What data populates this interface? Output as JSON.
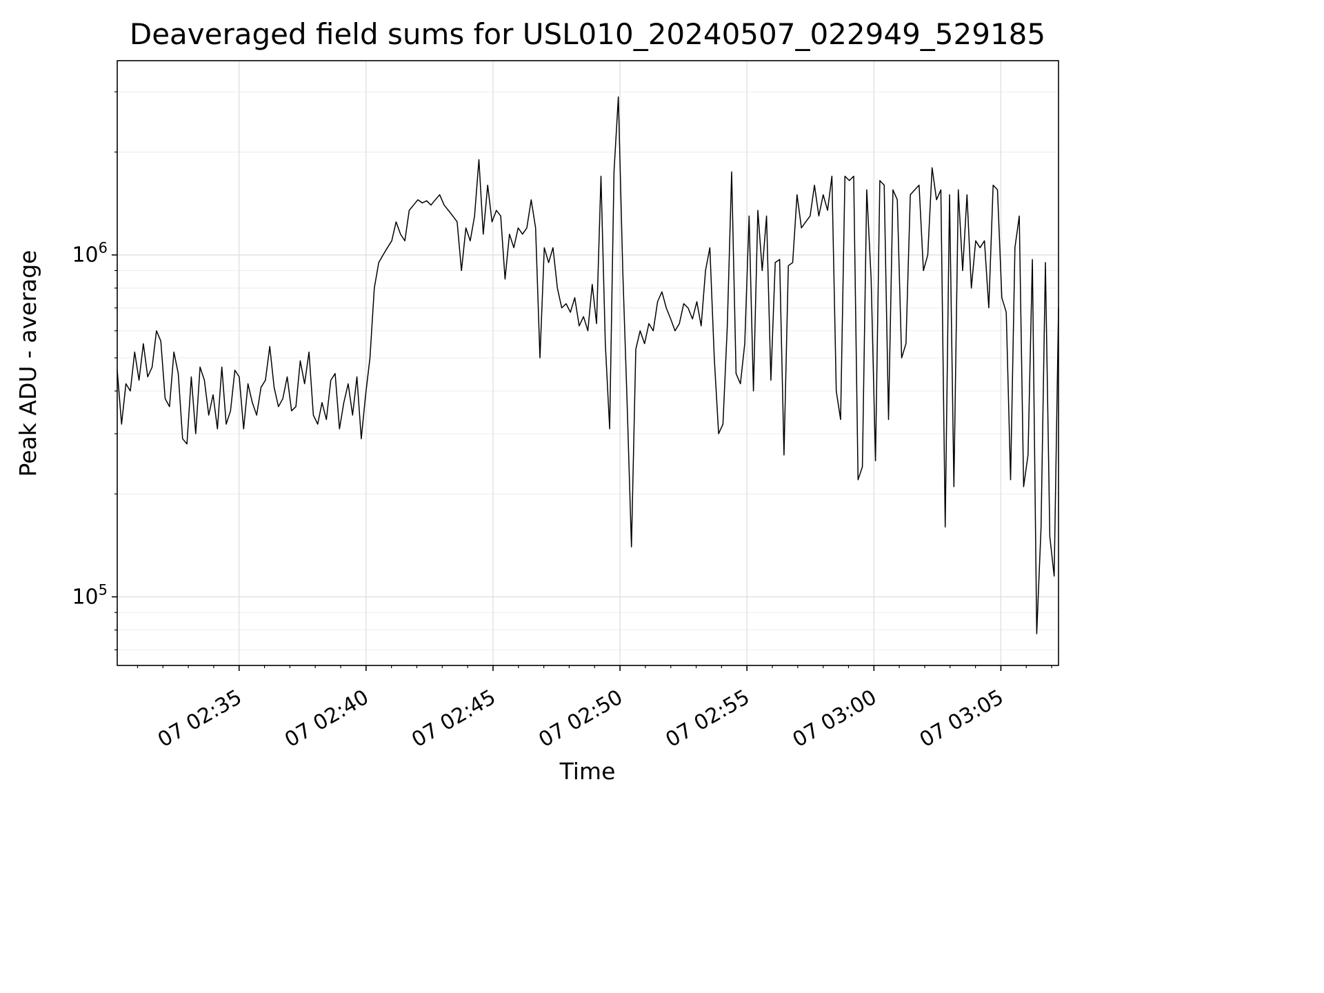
{
  "chart_data": {
    "type": "line",
    "title": "Deaveraged field sums for USL010_20240507_022949_529185",
    "xlabel": "Time",
    "ylabel": "Peak ADU - average",
    "yscale": "log",
    "ylim": [
      63000,
      3700000
    ],
    "x_start_min": 0.2,
    "x_end_min": 37.27,
    "line_color": "#000000",
    "grid_major_color": "#dcdcdc",
    "grid_minor_color": "#ebebeb",
    "x_ticks": [
      {
        "t": 5,
        "label": "07 02:35"
      },
      {
        "t": 10,
        "label": "07 02:40"
      },
      {
        "t": 15,
        "label": "07 02:45"
      },
      {
        "t": 20,
        "label": "07 02:50"
      },
      {
        "t": 25,
        "label": "07 02:55"
      },
      {
        "t": 30,
        "label": "07 03:00"
      },
      {
        "t": 35,
        "label": "07 03:05"
      }
    ],
    "y_ticks": [
      {
        "value": 100000,
        "base": "10",
        "exp": "5"
      },
      {
        "value": 1000000,
        "base": "10",
        "exp": "6"
      }
    ],
    "values": [
      460000,
      320000,
      420000,
      400000,
      520000,
      430000,
      550000,
      440000,
      470000,
      600000,
      560000,
      380000,
      360000,
      520000,
      450000,
      290000,
      280000,
      440000,
      300000,
      470000,
      430000,
      340000,
      390000,
      310000,
      470000,
      320000,
      350000,
      460000,
      440000,
      310000,
      420000,
      370000,
      340000,
      410000,
      430000,
      540000,
      410000,
      360000,
      380000,
      440000,
      350000,
      360000,
      490000,
      420000,
      520000,
      340000,
      320000,
      370000,
      330000,
      430000,
      450000,
      310000,
      370000,
      420000,
      340000,
      440000,
      290000,
      390000,
      500000,
      800000,
      950000,
      1000000,
      1050000,
      1100000,
      1250000,
      1150000,
      1100000,
      1350000,
      1400000,
      1450000,
      1420000,
      1440000,
      1400000,
      1450000,
      1500000,
      1400000,
      1350000,
      1300000,
      1250000,
      900000,
      1200000,
      1100000,
      1300000,
      1900000,
      1150000,
      1600000,
      1250000,
      1350000,
      1300000,
      850000,
      1150000,
      1050000,
      1200000,
      1150000,
      1200000,
      1450000,
      1200000,
      500000,
      1050000,
      950000,
      1050000,
      800000,
      700000,
      720000,
      680000,
      750000,
      620000,
      660000,
      600000,
      820000,
      630000,
      1700000,
      550000,
      310000,
      1750000,
      2900000,
      900000,
      370000,
      140000,
      530000,
      600000,
      550000,
      630000,
      600000,
      730000,
      780000,
      700000,
      650000,
      600000,
      630000,
      720000,
      700000,
      650000,
      730000,
      620000,
      900000,
      1050000,
      500000,
      300000,
      320000,
      620000,
      1750000,
      450000,
      420000,
      550000,
      1300000,
      400000,
      1350000,
      900000,
      1300000,
      430000,
      950000,
      970000,
      260000,
      930000,
      950000,
      1500000,
      1200000,
      1250000,
      1300000,
      1600000,
      1300000,
      1500000,
      1350000,
      1700000,
      400000,
      330000,
      1700000,
      1650000,
      1700000,
      220000,
      240000,
      1550000,
      850000,
      250000,
      1650000,
      1600000,
      330000,
      1550000,
      1450000,
      500000,
      550000,
      1500000,
      1550000,
      1600000,
      900000,
      1000000,
      1800000,
      1450000,
      1550000,
      160000,
      1500000,
      210000,
      1550000,
      900000,
      1500000,
      800000,
      1100000,
      1050000,
      1100000,
      700000,
      1600000,
      1550000,
      750000,
      680000,
      220000,
      1050000,
      1300000,
      210000,
      260000,
      970000,
      78000,
      160000,
      950000,
      150000,
      115000,
      700000
    ]
  }
}
